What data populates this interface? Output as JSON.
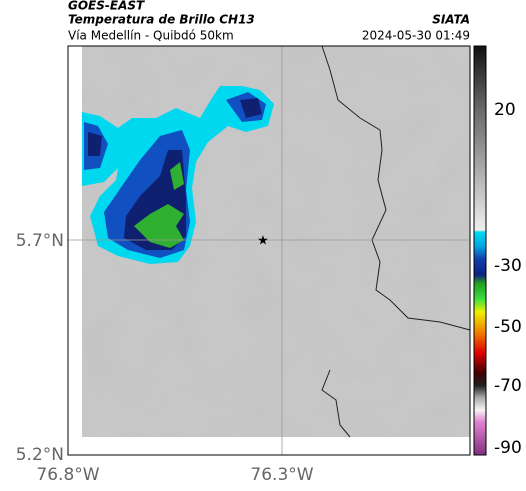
{
  "header": {
    "title": "GOES-EAST",
    "subtitle": "Temperatura de Brillo CH13",
    "source": "SIATA",
    "region": "Vía Medellín - Quibdó 50km",
    "datetime": "2024-05-30 01:49"
  },
  "map": {
    "lat_ticks": [
      "5.7°N",
      "5.2°N"
    ],
    "lon_ticks": [
      "76.8°W",
      "76.3°W"
    ]
  },
  "colorbar": {
    "ticks": [
      "20",
      "-30",
      "-50",
      "-70",
      "-90"
    ]
  }
}
